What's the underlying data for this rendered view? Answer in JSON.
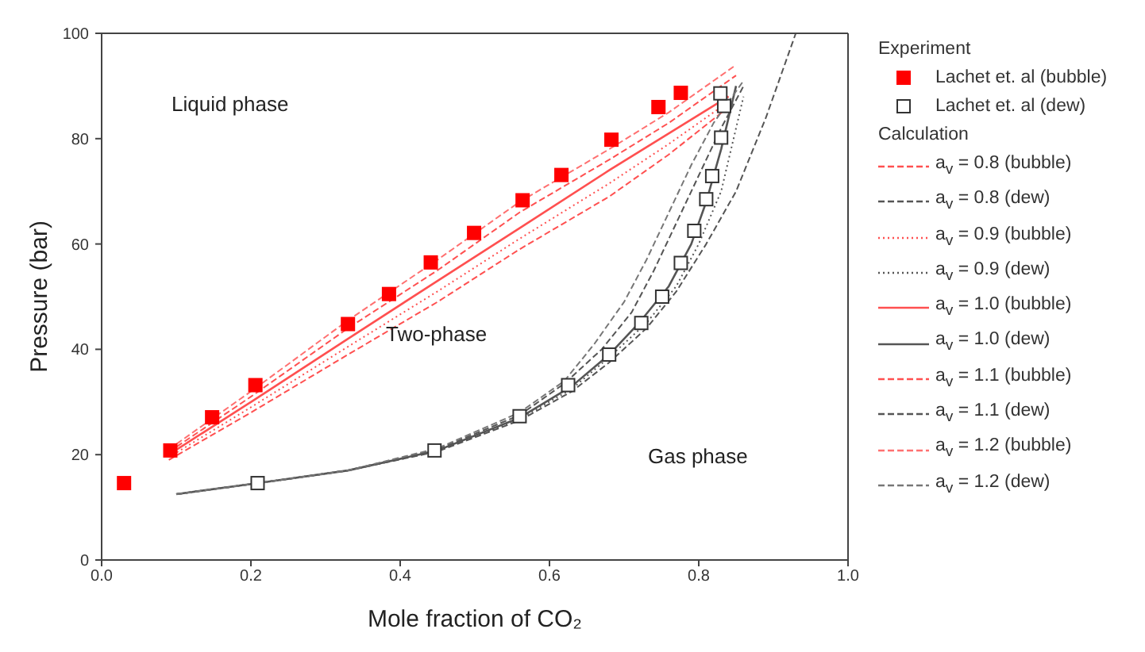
{
  "chart_data": {
    "type": "line",
    "xlabel": "Mole fraction of CO₂",
    "ylabel": "Pressure (bar)",
    "xlim": [
      0,
      1
    ],
    "ylim": [
      0,
      100
    ],
    "xticks": [
      {
        "value": 0,
        "label": "0.0"
      },
      {
        "value": 0.2,
        "label": "0.2"
      },
      {
        "value": 0.4,
        "label": "0.4"
      },
      {
        "value": 0.6,
        "label": "0.6"
      },
      {
        "value": 0.8,
        "label": "0.8"
      },
      {
        "value": 1,
        "label": "1.0"
      }
    ],
    "yticks": [
      0,
      20,
      40,
      60,
      80,
      100
    ],
    "grid": false,
    "legend": "right",
    "annotations": [
      "Liquid phase",
      "Two-phase",
      "Gas phase",
      "Experiment",
      "Calculation"
    ],
    "series": [
      {
        "name": "Lachet et. al (bubble)",
        "type": "scatter",
        "marker": "square",
        "color": "#ff0000",
        "x": [
          0.03,
          0.092,
          0.148,
          0.206,
          0.33,
          0.385,
          0.441,
          0.499,
          0.564,
          0.616,
          0.683,
          0.746,
          0.776
        ],
        "values": [
          14.6,
          20.8,
          27.1,
          33.2,
          44.8,
          50.5,
          56.5,
          62.1,
          68.3,
          73.1,
          79.8,
          86.0,
          88.7
        ]
      },
      {
        "name": "Lachet et. al (dew)",
        "type": "scatter",
        "marker": "square",
        "color": "#333333",
        "x": [
          0.209,
          0.446,
          0.56,
          0.625,
          0.68,
          0.723,
          0.751,
          0.776,
          0.794,
          0.81,
          0.818,
          0.83,
          0.834,
          0.829
        ],
        "values": [
          14.6,
          20.8,
          27.3,
          33.2,
          39.0,
          45.0,
          50.0,
          56.4,
          62.5,
          68.5,
          72.9,
          80.2,
          86.2,
          88.6
        ]
      },
      {
        "name": "a$_{v}$ = 0.8 (bubble)",
        "line_style": "dashed",
        "color": "#ff5050",
        "x": [
          0.09,
          0.2,
          0.33,
          0.45,
          0.56,
          0.68,
          0.76,
          0.84
        ],
        "values": [
          19,
          28,
          39,
          49,
          59,
          69,
          77,
          86
        ]
      },
      {
        "name": "a$_{v}$ = 0.8 (dew)",
        "line_style": "dashed",
        "color": "#555555",
        "x": [
          0.1,
          0.21,
          0.33,
          0.45,
          0.56,
          0.63,
          0.68,
          0.73,
          0.77,
          0.81,
          0.85,
          0.89,
          0.93
        ],
        "values": [
          12.5,
          14.6,
          17,
          20.6,
          26.5,
          32,
          37.5,
          44,
          51,
          60,
          70,
          84,
          100
        ]
      },
      {
        "name": "a$_{v}$ = 0.9 (bubble)",
        "line_style": "dotted",
        "color": "#ff5050",
        "x": [
          0.09,
          0.2,
          0.33,
          0.45,
          0.56,
          0.68,
          0.76,
          0.84
        ],
        "values": [
          19.5,
          29,
          40.5,
          51,
          61,
          71.5,
          79,
          87
        ]
      },
      {
        "name": "a$_{v}$ = 0.9 (dew)",
        "line_style": "dotted",
        "color": "#555555",
        "x": [
          0.1,
          0.21,
          0.33,
          0.45,
          0.56,
          0.63,
          0.68,
          0.73,
          0.77,
          0.8,
          0.83,
          0.86
        ],
        "values": [
          12.5,
          14.6,
          17,
          20.7,
          26.8,
          32.5,
          38.5,
          45,
          52,
          60,
          70,
          88
        ]
      },
      {
        "name": "a$_{v}$ = 1.0 (bubble)",
        "line_style": "solid",
        "color": "#ff5050",
        "x": [
          0.09,
          0.2,
          0.33,
          0.45,
          0.56,
          0.68,
          0.76,
          0.84
        ],
        "values": [
          20,
          30,
          42,
          53,
          63,
          74,
          81,
          88
        ]
      },
      {
        "name": "a$_{v}$ = 1.0 (dew)",
        "line_style": "solid",
        "color": "#555555",
        "x": [
          0.1,
          0.21,
          0.33,
          0.45,
          0.56,
          0.63,
          0.68,
          0.72,
          0.76,
          0.79,
          0.81,
          0.83,
          0.85
        ],
        "values": [
          12.5,
          14.6,
          17,
          20.8,
          27,
          33,
          39,
          45,
          52,
          60,
          68,
          78,
          90
        ]
      },
      {
        "name": "a$_{v}$ = 1.1 (bubble)",
        "line_style": "dashed",
        "color": "#ff5050",
        "x": [
          0.09,
          0.2,
          0.33,
          0.45,
          0.56,
          0.68,
          0.76,
          0.85
        ],
        "values": [
          20.5,
          31,
          44,
          55,
          66,
          76,
          83,
          92
        ]
      },
      {
        "name": "a$_{v}$ = 1.1 (dew)",
        "line_style": "dashed",
        "color": "#555555",
        "x": [
          0.1,
          0.21,
          0.33,
          0.45,
          0.56,
          0.62,
          0.67,
          0.71,
          0.74,
          0.77,
          0.8,
          0.83,
          0.86
        ],
        "values": [
          12.5,
          14.6,
          17,
          21,
          27.5,
          33.5,
          40,
          47,
          55,
          64,
          73,
          82,
          90
        ]
      },
      {
        "name": "a$_{v}$ = 1.2 (bubble)",
        "line_style": "dashed",
        "color": "#ff7070",
        "x": [
          0.09,
          0.2,
          0.33,
          0.45,
          0.56,
          0.68,
          0.76,
          0.85
        ],
        "values": [
          21,
          32,
          45.5,
          57,
          68,
          78,
          85,
          94
        ]
      },
      {
        "name": "a$_{v}$ = 1.2 (dew)",
        "line_style": "dashed",
        "color": "#777777",
        "x": [
          0.1,
          0.21,
          0.33,
          0.45,
          0.56,
          0.62,
          0.66,
          0.7,
          0.73,
          0.76,
          0.79,
          0.82,
          0.86
        ],
        "values": [
          12.5,
          14.6,
          17,
          21.2,
          28,
          34,
          41,
          49,
          57,
          66,
          75,
          83,
          91
        ]
      }
    ]
  }
}
